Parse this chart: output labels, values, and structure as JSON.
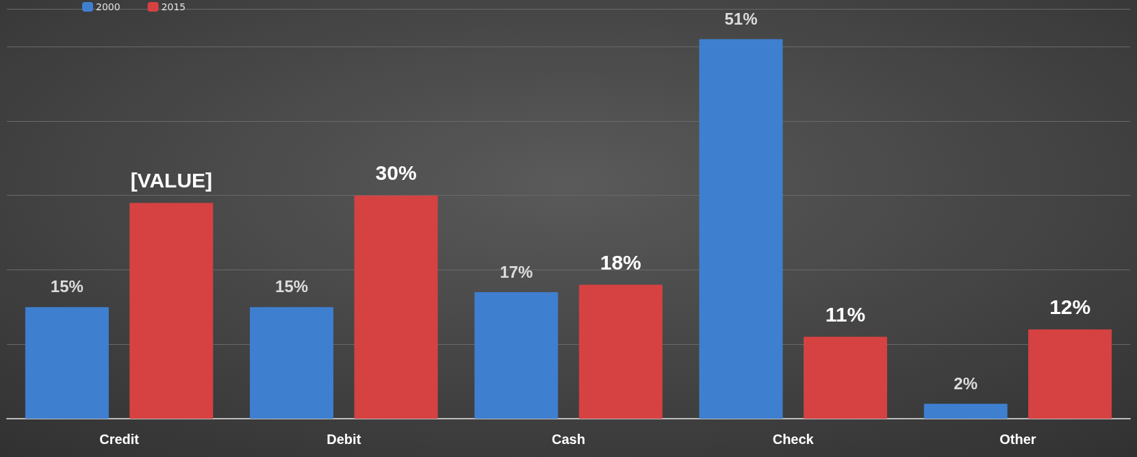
{
  "chart_data": {
    "type": "bar",
    "categories": [
      "Credit",
      "Debit",
      "Cash",
      "Check",
      "Other"
    ],
    "series": [
      {
        "name": "2000",
        "color": "#3f7fd0",
        "values": [
          15,
          15,
          17,
          51,
          2
        ],
        "value_labels": [
          "15%",
          "15%",
          "17%",
          "51%",
          "2%"
        ]
      },
      {
        "name": "2015",
        "color": "#d64242",
        "values": [
          29,
          30,
          18,
          11,
          12
        ],
        "value_labels": [
          "[VALUE]",
          "30%",
          "18%",
          "11%",
          "12%"
        ]
      }
    ],
    "tick_labels": "x",
    "grid": "y",
    "legend": "top left"
  }
}
